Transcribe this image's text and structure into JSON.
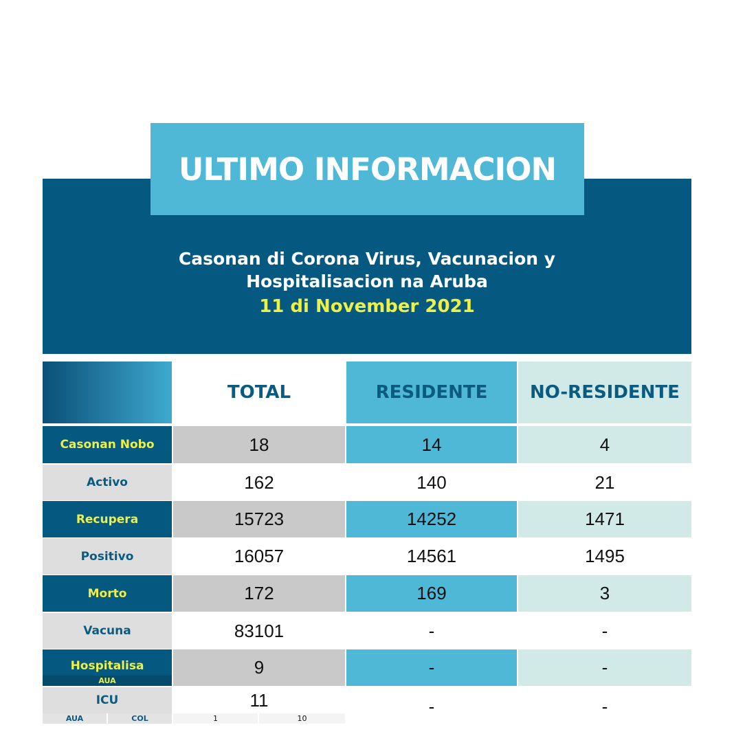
{
  "title": "ULTIMO INFORMACION",
  "subtitle": {
    "line1": "Casonan di Corona Virus, Vacunacion y",
    "line2": "Hospitalisacion na Aruba",
    "date": "11 di November 2021"
  },
  "columns": [
    "TOTAL",
    "RESIDENTE",
    "NO-RESIDENTE"
  ],
  "rows": [
    {
      "label": "Casonan Nobo",
      "total": "18",
      "residente": "14",
      "no_residente": "4"
    },
    {
      "label": "Activo",
      "total": "162",
      "residente": "140",
      "no_residente": "21"
    },
    {
      "label": "Recupera",
      "total": "15723",
      "residente": "14252",
      "no_residente": "1471"
    },
    {
      "label": "Positivo",
      "total": "16057",
      "residente": "14561",
      "no_residente": "1495"
    },
    {
      "label": "Morto",
      "total": "172",
      "residente": "169",
      "no_residente": "3"
    },
    {
      "label": "Vacuna",
      "total": "83101",
      "residente": "-",
      "no_residente": "-"
    },
    {
      "label": "Hospitalisa",
      "sublabel": "AUA",
      "total": "9",
      "residente": "-",
      "no_residente": "-"
    },
    {
      "label": "ICU",
      "sublabels": [
        "AUA",
        "COL"
      ],
      "total": "11",
      "subvalues": [
        "1",
        "10"
      ],
      "residente": "-",
      "no_residente": "-"
    }
  ],
  "colors": {
    "dark_blue": "#055980",
    "light_blue": "#4fb8d7",
    "pale_teal": "#d1eae7",
    "highlight_yellow": "#eef04a",
    "grey": "#c9c9c9"
  }
}
